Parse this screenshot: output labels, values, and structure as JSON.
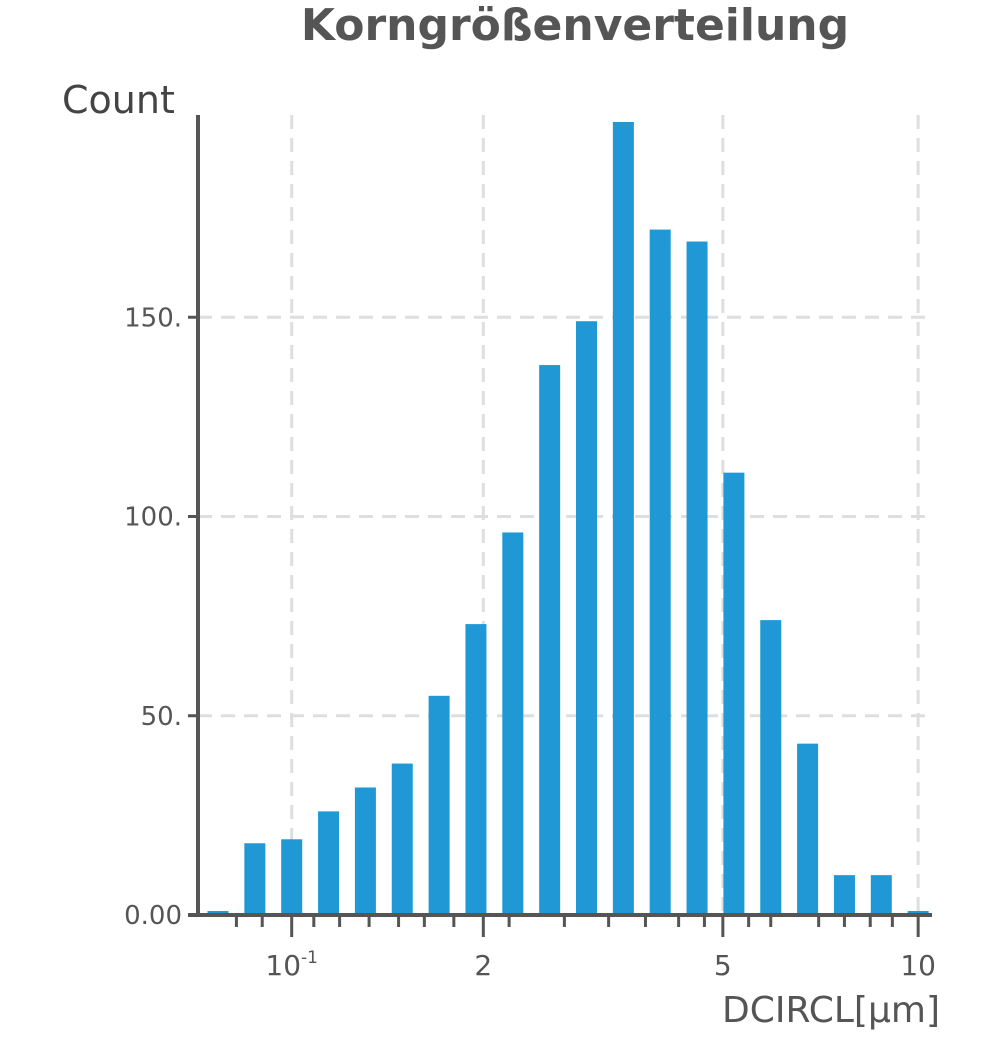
{
  "chart_data": {
    "type": "bar",
    "title": "Korngrößenverteilung",
    "ylabel": "Count",
    "xlabel": "DCIRCL[μm]",
    "ylim": [
      0,
      200
    ],
    "y_ticks": [
      {
        "value": 0,
        "label": "0.00"
      },
      {
        "value": 50,
        "label": "50."
      },
      {
        "value": 100,
        "label": "100."
      },
      {
        "value": 150,
        "label": "150."
      }
    ],
    "x_ticks": [
      {
        "index": 2.0,
        "label": "10",
        "sup": "-1"
      },
      {
        "index": 7.2,
        "label": "2",
        "sup": ""
      },
      {
        "index": 13.7,
        "label": "5",
        "sup": ""
      },
      {
        "index": 19.0,
        "label": "10",
        "sup": ""
      }
    ],
    "grid": true,
    "bar_color": "#1f98d5",
    "values": [
      1,
      18,
      19,
      26,
      32,
      38,
      55,
      73,
      96,
      138,
      149,
      199,
      172,
      169,
      111,
      74,
      43,
      10,
      10,
      1
    ]
  }
}
